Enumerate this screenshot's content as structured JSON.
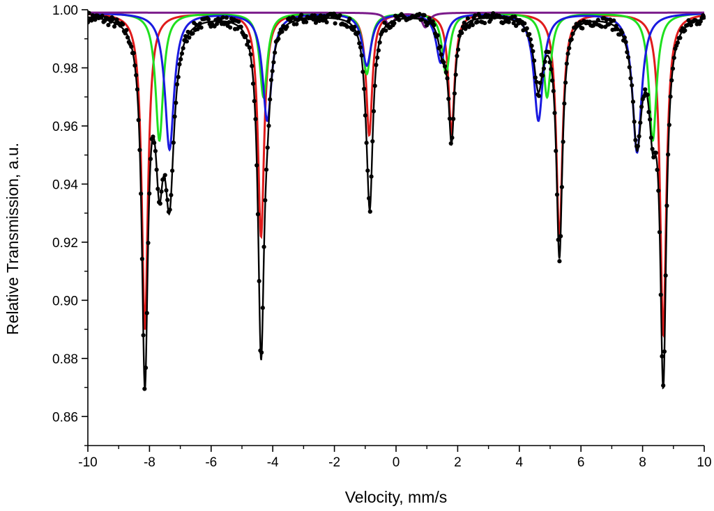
{
  "chart_data": {
    "type": "scatter",
    "title": "",
    "xlabel": "Velocity, mm/s",
    "ylabel": "Relative Transmission, a.u.",
    "xlim": [
      -10,
      10
    ],
    "ylim": [
      0.85,
      1.0
    ],
    "x_ticks": [
      -10,
      -8,
      -6,
      -4,
      -2,
      0,
      2,
      4,
      6,
      8,
      10
    ],
    "y_ticks": [
      0.86,
      0.88,
      0.9,
      0.92,
      0.94,
      0.96,
      0.98,
      1.0
    ],
    "x_tick_labels": [
      "-10",
      "-8",
      "-6",
      "-4",
      "-2",
      "0",
      "2",
      "4",
      "6",
      "8",
      "10"
    ],
    "y_tick_labels": [
      "0.86",
      "0.88",
      "0.90",
      "0.92",
      "0.94",
      "0.96",
      "0.98",
      "1.00"
    ],
    "grid": false,
    "legend": "none",
    "series": [
      {
        "kind": "points",
        "color": "#000000",
        "baseline": 0.9985,
        "peaks": [
          {
            "x": -8.15,
            "depth": 0.122,
            "hwhm": 0.12
          },
          {
            "x": -7.68,
            "depth": 0.044,
            "hwhm": 0.15
          },
          {
            "x": -7.35,
            "depth": 0.058,
            "hwhm": 0.18
          },
          {
            "x": -4.38,
            "depth": 0.112,
            "hwhm": 0.12
          },
          {
            "x": -4.18,
            "depth": 0.018,
            "hwhm": 0.15
          },
          {
            "x": -0.85,
            "depth": 0.06,
            "hwhm": 0.12
          },
          {
            "x": -0.95,
            "depth": 0.01,
            "hwhm": 0.15
          },
          {
            "x": 1.5,
            "depth": 0.01,
            "hwhm": 0.15
          },
          {
            "x": 1.8,
            "depth": 0.042,
            "hwhm": 0.12
          },
          {
            "x": 4.62,
            "depth": 0.024,
            "hwhm": 0.18
          },
          {
            "x": 5.3,
            "depth": 0.082,
            "hwhm": 0.12
          },
          {
            "x": 7.82,
            "depth": 0.042,
            "hwhm": 0.18
          },
          {
            "x": 8.33,
            "depth": 0.03,
            "hwhm": 0.15
          },
          {
            "x": 8.67,
            "depth": 0.122,
            "hwhm": 0.12
          }
        ]
      },
      {
        "kind": "line",
        "color": "#e01b1b",
        "baseline": 0.999,
        "peaks": [
          {
            "x": -8.15,
            "depth": 0.109,
            "hwhm": 0.12
          },
          {
            "x": -4.38,
            "depth": 0.077,
            "hwhm": 0.12
          },
          {
            "x": -0.87,
            "depth": 0.042,
            "hwhm": 0.12
          },
          {
            "x": 1.8,
            "depth": 0.041,
            "hwhm": 0.12
          },
          {
            "x": 5.3,
            "depth": 0.078,
            "hwhm": 0.12
          },
          {
            "x": 8.67,
            "depth": 0.111,
            "hwhm": 0.12
          }
        ]
      },
      {
        "kind": "line",
        "color": "#1fe01f",
        "baseline": 0.999,
        "peaks": [
          {
            "x": -7.68,
            "depth": 0.044,
            "hwhm": 0.15
          },
          {
            "x": -4.3,
            "depth": 0.029,
            "hwhm": 0.15
          },
          {
            "x": -0.95,
            "depth": 0.021,
            "hwhm": 0.15
          },
          {
            "x": 1.62,
            "depth": 0.021,
            "hwhm": 0.15
          },
          {
            "x": 4.9,
            "depth": 0.029,
            "hwhm": 0.15
          },
          {
            "x": 8.33,
            "depth": 0.044,
            "hwhm": 0.15
          }
        ]
      },
      {
        "kind": "line",
        "color": "#1a1ae0",
        "baseline": 0.999,
        "peaks": [
          {
            "x": -7.35,
            "depth": 0.047,
            "hwhm": 0.18
          },
          {
            "x": -4.18,
            "depth": 0.037,
            "hwhm": 0.18
          },
          {
            "x": -0.95,
            "depth": 0.018,
            "hwhm": 0.18
          },
          {
            "x": 1.45,
            "depth": 0.017,
            "hwhm": 0.18
          },
          {
            "x": 4.62,
            "depth": 0.037,
            "hwhm": 0.18
          },
          {
            "x": 7.82,
            "depth": 0.048,
            "hwhm": 0.18
          }
        ]
      },
      {
        "kind": "line",
        "color": "#7a1a8a",
        "baseline": 0.999,
        "peaks": [
          {
            "x": -0.2,
            "depth": 0.005,
            "hwhm": 0.14
          },
          {
            "x": 0.95,
            "depth": 0.005,
            "hwhm": 0.14
          }
        ]
      }
    ]
  }
}
